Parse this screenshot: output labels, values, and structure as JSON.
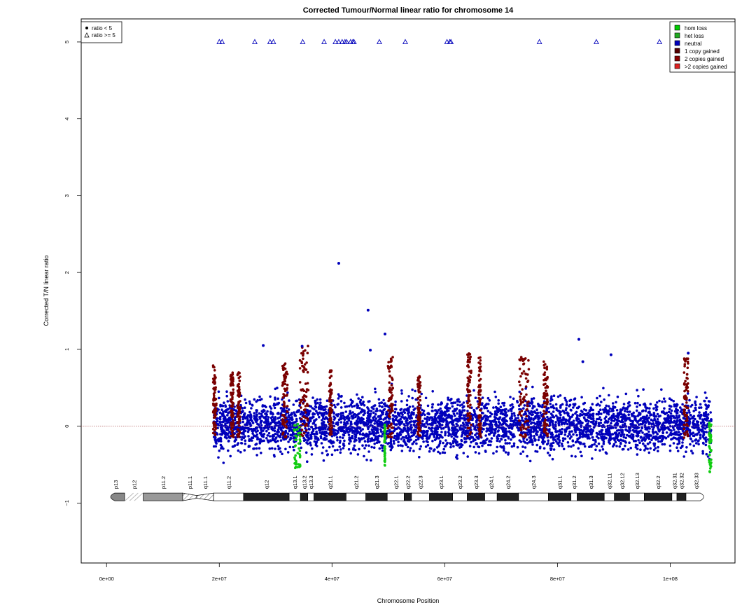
{
  "chart_data": {
    "type": "scatter",
    "title": "Corrected Tumour/Normal linear ratio for chromosome  14",
    "xlabel": "Chromosome Position",
    "ylabel": "Corrected T/N linear ratio",
    "xlim": [
      -4500000,
      111500000
    ],
    "ylim": [
      -1.78,
      5.3
    ],
    "x_ticks": [
      0,
      20000000,
      40000000,
      60000000,
      80000000,
      100000000
    ],
    "x_tick_labels": [
      "0e+00",
      "2e+07",
      "4e+07",
      "6e+07",
      "8e+07",
      "1e+08"
    ],
    "y_ticks": [
      -1,
      0,
      1,
      2,
      3,
      4,
      5
    ],
    "y_tick_labels": [
      "−1",
      "0",
      "1",
      "2",
      "3",
      "4",
      "5"
    ],
    "reference_line": 0,
    "data_range": [
      19000000,
      107300000
    ],
    "shape_legend": {
      "position": "top-left",
      "items": [
        {
          "label": "ratio < 5",
          "symbol": "dot"
        },
        {
          "label": "ratio >= 5",
          "symbol": "triangle"
        }
      ]
    },
    "color_legend": {
      "position": "top-right",
      "items": [
        {
          "label": "hom loss",
          "color": "#00cc00"
        },
        {
          "label": "het loss",
          "color": "#22aa22"
        },
        {
          "label": "neutral",
          "color": "#0000bb"
        },
        {
          "label": "1 copy gained",
          "color": "#550000"
        },
        {
          "label": "2 copies gained",
          "color": "#880000"
        },
        {
          "label": ">2 copies gained",
          "color": "#dd2222"
        }
      ]
    },
    "colors": {
      "neutral": "#0000bb",
      "gained": "#7a0000",
      "loss": "#11cc11",
      "reference": "#b05a5a"
    },
    "capped_points_x": [
      20000000,
      20500000,
      26300000,
      29000000,
      29600000,
      34800000,
      38600000,
      40600000,
      41200000,
      41800000,
      42300000,
      42600000,
      43300000,
      43700000,
      43900000,
      48400000,
      53000000,
      60400000,
      60900000,
      61100000,
      76800000,
      86900000,
      98100000
    ],
    "capped_points_y": 5,
    "outliers": [
      {
        "x": 41200000,
        "y": 2.12
      },
      {
        "x": 46400000,
        "y": 1.51
      },
      {
        "x": 49400000,
        "y": 1.2
      },
      {
        "x": 27800000,
        "y": 1.05
      },
      {
        "x": 83800000,
        "y": 1.13
      },
      {
        "x": 46800000,
        "y": 0.99
      },
      {
        "x": 34700000,
        "y": 1.04
      },
      {
        "x": 84500000,
        "y": 0.84
      },
      {
        "x": 89500000,
        "y": 0.93
      },
      {
        "x": 103200000,
        "y": 0.95
      }
    ],
    "gain_regions": [
      {
        "start": 18900000,
        "end": 19500000,
        "top": 0.8
      },
      {
        "start": 22000000,
        "end": 22500000,
        "top": 0.7
      },
      {
        "start": 23200000,
        "end": 23700000,
        "top": 0.7
      },
      {
        "start": 31200000,
        "end": 32100000,
        "top": 0.85
      },
      {
        "start": 34300000,
        "end": 35800000,
        "top": 1.05
      },
      {
        "start": 39500000,
        "end": 40000000,
        "top": 0.75
      },
      {
        "start": 49900000,
        "end": 50800000,
        "top": 0.9
      },
      {
        "start": 55200000,
        "end": 55700000,
        "top": 0.65
      },
      {
        "start": 64000000,
        "end": 64700000,
        "top": 0.95
      },
      {
        "start": 66000000,
        "end": 66400000,
        "top": 0.9
      },
      {
        "start": 73200000,
        "end": 75000000,
        "top": 0.9
      },
      {
        "start": 77500000,
        "end": 78300000,
        "top": 0.85
      },
      {
        "start": 102400000,
        "end": 103200000,
        "top": 0.9
      }
    ],
    "loss_regions": [
      {
        "start": 33300000,
        "end": 34400000,
        "bottom": -0.55
      },
      {
        "start": 106900000,
        "end": 107300000,
        "bottom": -0.6
      },
      {
        "start": 49300000,
        "end": 49400000,
        "bottom": -0.52
      }
    ],
    "ideogram": {
      "y": -0.92,
      "bands": [
        {
          "name": "p13",
          "start": 0,
          "end": 3200000,
          "type": "pcap"
        },
        {
          "name": "p12",
          "start": 3200000,
          "end": 6500000,
          "type": "hatch"
        },
        {
          "name": "p11.2",
          "start": 6500000,
          "end": 13500000,
          "type": "gray"
        },
        {
          "name": "p11.1",
          "start": 13500000,
          "end": 16000000,
          "type": "hatchbox"
        },
        {
          "name": "q11.1",
          "start": 16000000,
          "end": 19000000,
          "type": "hatchbox"
        },
        {
          "name": "q11.2",
          "start": 19000000,
          "end": 24300000,
          "type": "white"
        },
        {
          "name": "q12",
          "start": 24300000,
          "end": 32400000,
          "type": "black"
        },
        {
          "name": "q13.1",
          "start": 32400000,
          "end": 34400000,
          "type": "white"
        },
        {
          "name": "q13.2",
          "start": 34400000,
          "end": 35700000,
          "type": "black"
        },
        {
          "name": "q13.3",
          "start": 35700000,
          "end": 36800000,
          "type": "white"
        },
        {
          "name": "q21.1",
          "start": 36800000,
          "end": 42500000,
          "type": "black"
        },
        {
          "name": "q21.2",
          "start": 42500000,
          "end": 46000000,
          "type": "white"
        },
        {
          "name": "q21.3",
          "start": 46000000,
          "end": 49800000,
          "type": "black"
        },
        {
          "name": "q22.1",
          "start": 49800000,
          "end": 52800000,
          "type": "white"
        },
        {
          "name": "q22.2",
          "start": 52800000,
          "end": 54100000,
          "type": "black"
        },
        {
          "name": "q22.3",
          "start": 54100000,
          "end": 57300000,
          "type": "white"
        },
        {
          "name": "q23.1",
          "start": 57300000,
          "end": 61400000,
          "type": "black"
        },
        {
          "name": "q23.2",
          "start": 61400000,
          "end": 64000000,
          "type": "white"
        },
        {
          "name": "q23.3",
          "start": 64000000,
          "end": 67100000,
          "type": "black"
        },
        {
          "name": "q24.1",
          "start": 67100000,
          "end": 69300000,
          "type": "white"
        },
        {
          "name": "q24.2",
          "start": 69300000,
          "end": 73100000,
          "type": "black"
        },
        {
          "name": "q24.3",
          "start": 73100000,
          "end": 78400000,
          "type": "white"
        },
        {
          "name": "q31.1",
          "start": 78400000,
          "end": 82400000,
          "type": "black"
        },
        {
          "name": "q31.2",
          "start": 82400000,
          "end": 83500000,
          "type": "white"
        },
        {
          "name": "q31.3",
          "start": 83500000,
          "end": 88300000,
          "type": "black"
        },
        {
          "name": "q32.11",
          "start": 88300000,
          "end": 90100000,
          "type": "white"
        },
        {
          "name": "q32.12",
          "start": 90100000,
          "end": 92800000,
          "type": "black"
        },
        {
          "name": "q32.13",
          "start": 92800000,
          "end": 95400000,
          "type": "white"
        },
        {
          "name": "q32.2",
          "start": 95400000,
          "end": 100300000,
          "type": "black"
        },
        {
          "name": "q32.31",
          "start": 100300000,
          "end": 101200000,
          "type": "white"
        },
        {
          "name": "q32.32",
          "start": 101200000,
          "end": 102800000,
          "type": "black"
        },
        {
          "name": "q32.33",
          "start": 102800000,
          "end": 106400000,
          "type": "qcap"
        }
      ]
    }
  }
}
